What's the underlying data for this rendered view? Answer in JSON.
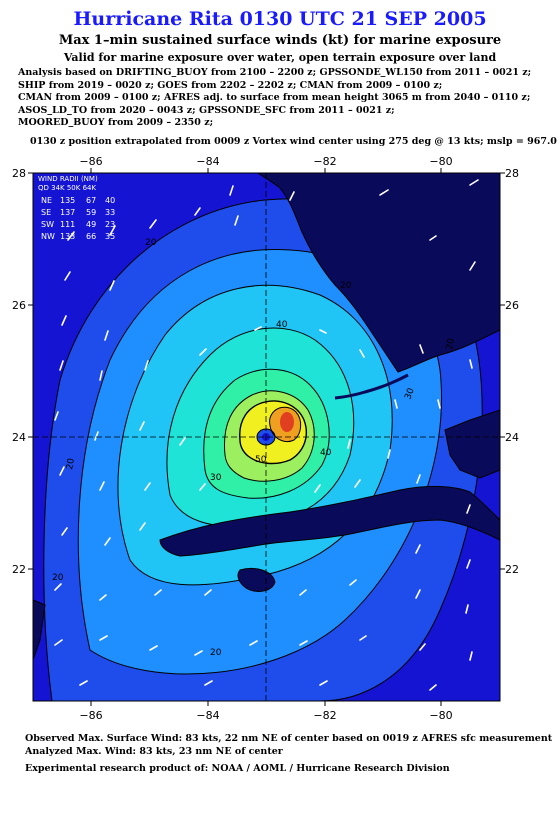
{
  "header": {
    "title": "Hurricane Rita 0130 UTC 21 SEP 2005",
    "subtitle": "Max 1–min sustained surface winds (kt) for marine exposure",
    "subtitle2": "Valid for marine exposure over water, open terrain exposure over land"
  },
  "analysis_lines": [
    "Analysis based on  DRIFTING_BUOY from 2100 – 2200 z;  GPSSONDE_WL150 from 2011 – 0021 z;",
    "SHIP from 2019 – 0020 z;  GOES from 2202 – 2202 z;  CMAN from 2009 – 0100 z;",
    "CMAN from 2009 – 0100 z;  AFRES adj. to surface from mean height 3065 m from 2040 – 0110 z;",
    "ASOS_LD_TO from 2020 – 0043 z;  GPSSONDE_SFC from 2011 – 0021 z;",
    "MOORED_BUOY from 2009 – 2350 z;"
  ],
  "position_line": "0130 z position extrapolated from 0009 z Vortex wind center using 275 deg @ 13 kts; mslp = 967.0 mb",
  "map": {
    "x_ticks": [
      "−86",
      "−84",
      "−82",
      "−80"
    ],
    "y_ticks": [
      "28",
      "26",
      "24",
      "22"
    ],
    "contour_labels": [
      "20",
      "20",
      "20",
      "20",
      "20",
      "30",
      "30",
      "40",
      "40",
      "50",
      "20"
    ],
    "wind_radii": {
      "title": "WIND RADII (NM)",
      "header": "QD  34K  50K  64K",
      "rows": [
        {
          "qd": "NE",
          "k34": "135",
          "k50": "67",
          "k64": "40"
        },
        {
          "qd": "SE",
          "k34": "137",
          "k50": "59",
          "k64": "33"
        },
        {
          "qd": "SW",
          "k34": "111",
          "k50": "49",
          "k64": "23"
        },
        {
          "qd": "NW",
          "k34": "133",
          "k50": "66",
          "k64": "35"
        }
      ]
    },
    "colors": {
      "band_outer": "#1414d2",
      "band_2": "#1f4dec",
      "band_3": "#1f8fff",
      "band_4": "#20c4f5",
      "band_5": "#20e3d8",
      "band_6": "#30f0a8",
      "band_7": "#9cf060",
      "band_8": "#f0f020",
      "band_9": "#f0a020",
      "peak": "#e04020",
      "land": "#0a0a5a"
    }
  },
  "footer": {
    "observed": "Observed Max. Surface Wind: 83 kts, 22 nm NE of center based on 0019 z AFRES sfc measurement",
    "analyzed": "Analyzed Max. Wind: 83 kts, 23 nm NE of center",
    "credit": "Experimental research product of:  NOAA / AOML / Hurricane Research Division"
  }
}
